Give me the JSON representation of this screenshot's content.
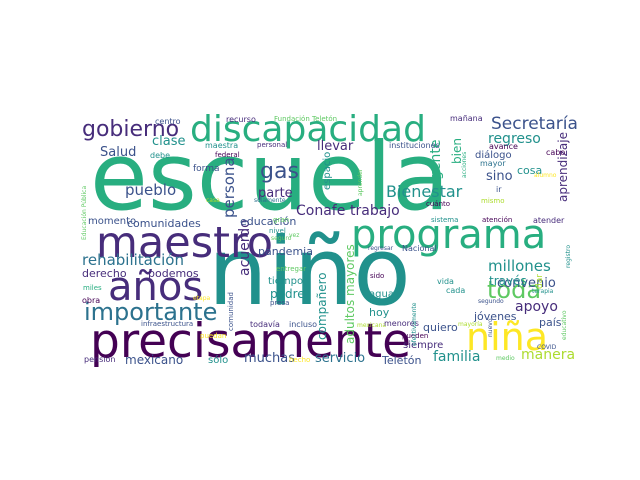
{
  "colors": {
    "dark_purple": "#440154",
    "purple": "#472d7b",
    "indigo": "#3b528b",
    "blue": "#2c728e",
    "teal": "#21918c",
    "green_teal": "#28ae80",
    "green": "#5ec962",
    "light_green": "#addc30",
    "yellow": "#fde725"
  },
  "words": [
    {
      "text": "escuela",
      "color": "green_teal"
    },
    {
      "text": "niño",
      "color": "teal"
    },
    {
      "text": "precisamente",
      "color": "dark_purple"
    },
    {
      "text": "maestro",
      "color": "purple"
    },
    {
      "text": "programa",
      "color": "green_teal"
    },
    {
      "text": "discapacidad",
      "color": "green_teal"
    },
    {
      "text": "años",
      "color": "purple"
    },
    {
      "text": "gobierno",
      "color": "purple"
    },
    {
      "text": "importante",
      "color": "blue"
    },
    {
      "text": "niña",
      "color": "yellow"
    },
    {
      "text": "gas",
      "color": "indigo"
    },
    {
      "text": "Secretaría",
      "color": "indigo"
    },
    {
      "text": "toda",
      "color": "green"
    },
    {
      "text": "Bienestar",
      "color": "teal"
    },
    {
      "text": "rehabilitación",
      "color": "blue"
    },
    {
      "text": "millones",
      "color": "teal"
    },
    {
      "text": "pueblo",
      "color": "indigo"
    },
    {
      "text": "persona",
      "color": "indigo"
    },
    {
      "text": "Conafe",
      "color": "purple"
    },
    {
      "text": "trabajo",
      "color": "purple"
    },
    {
      "text": "regreso",
      "color": "teal"
    },
    {
      "text": "clase",
      "color": "teal"
    },
    {
      "text": "Salud",
      "color": "indigo"
    },
    {
      "text": "llevar",
      "color": "purple"
    },
    {
      "text": "parte",
      "color": "purple"
    },
    {
      "text": "acuerdo",
      "color": "purple"
    },
    {
      "text": "sino",
      "color": "indigo"
    },
    {
      "text": "convenio",
      "color": "indigo"
    },
    {
      "text": "apoyo",
      "color": "purple"
    },
    {
      "text": "familia",
      "color": "teal"
    },
    {
      "text": "manera",
      "color": "light_green"
    },
    {
      "text": "servicio",
      "color": "blue"
    },
    {
      "text": "muchas",
      "color": "indigo"
    },
    {
      "text": "mexicano",
      "color": "indigo"
    },
    {
      "text": "derecho",
      "color": "purple"
    },
    {
      "text": "podemos",
      "color": "purple"
    },
    {
      "text": "comunidades",
      "color": "indigo"
    },
    {
      "text": "educación",
      "color": "indigo"
    },
    {
      "text": "momento",
      "color": "indigo"
    },
    {
      "text": "pandemia",
      "color": "indigo"
    },
    {
      "text": "compañero",
      "color": "teal"
    },
    {
      "text": "adultos mayores",
      "color": "green"
    },
    {
      "text": "gente",
      "color": "green_teal"
    },
    {
      "text": "bien",
      "color": "green_teal"
    },
    {
      "text": "cosa",
      "color": "teal"
    },
    {
      "text": "través",
      "color": "teal"
    },
    {
      "text": "aprendizaje",
      "color": "purple"
    },
    {
      "text": "padre",
      "color": "teal"
    },
    {
      "text": "tiempo",
      "color": "teal"
    },
    {
      "text": "sólo",
      "color": "teal"
    },
    {
      "text": "Teletón",
      "color": "indigo"
    },
    {
      "text": "quiero",
      "color": "indigo"
    },
    {
      "text": "país",
      "color": "indigo"
    },
    {
      "text": "jóvenes",
      "color": "indigo"
    },
    {
      "text": "siempre",
      "color": "purple"
    },
    {
      "text": "hoy",
      "color": "teal"
    },
    {
      "text": "agua",
      "color": "teal"
    },
    {
      "text": "diálogo",
      "color": "indigo"
    },
    {
      "text": "espacio",
      "color": "teal"
    },
    {
      "text": "forma",
      "color": "indigo"
    },
    {
      "text": "centro",
      "color": "indigo"
    },
    {
      "text": "recurso",
      "color": "purple"
    },
    {
      "text": "Fundación Teletón",
      "color": "green"
    },
    {
      "text": "mañana",
      "color": "purple"
    },
    {
      "text": "debe",
      "color": "teal"
    },
    {
      "text": "maestra",
      "color": "teal"
    },
    {
      "text": "personal",
      "color": "purple"
    },
    {
      "text": "federal",
      "color": "dark_purple"
    },
    {
      "text": "instituciones",
      "color": "indigo"
    },
    {
      "text": "mayor",
      "color": "blue"
    },
    {
      "text": "avance",
      "color": "dark_purple"
    },
    {
      "text": "cabo",
      "color": "dark_purple"
    },
    {
      "text": "ir",
      "color": "indigo"
    },
    {
      "text": "cuánto",
      "color": "dark_purple"
    },
    {
      "text": "mismo",
      "color": "light_green"
    },
    {
      "text": "atender",
      "color": "purple"
    },
    {
      "text": "atención",
      "color": "dark_purple"
    },
    {
      "text": "sistema",
      "color": "teal"
    },
    {
      "text": "solamente",
      "color": "blue"
    },
    {
      "text": "nivel",
      "color": "teal"
    },
    {
      "text": "seguro",
      "color": "green"
    },
    {
      "text": "vez",
      "color": "green"
    },
    {
      "text": "gran",
      "color": "green"
    },
    {
      "text": "entregar",
      "color": "green"
    },
    {
      "text": "regresar",
      "color": "indigo"
    },
    {
      "text": "Nacional",
      "color": "indigo"
    },
    {
      "text": "sido",
      "color": "dark_purple"
    },
    {
      "text": "comunidad",
      "color": "indigo"
    },
    {
      "text": "presa",
      "color": "indigo"
    },
    {
      "text": "etapa",
      "color": "yellow"
    },
    {
      "text": "miles",
      "color": "green_teal"
    },
    {
      "text": "obra",
      "color": "dark_purple"
    },
    {
      "text": "infraestructura",
      "color": "indigo"
    },
    {
      "text": "todavía",
      "color": "purple"
    },
    {
      "text": "incluso",
      "color": "indigo"
    },
    {
      "text": "mexicana",
      "color": "light_green"
    },
    {
      "text": "menores",
      "color": "purple"
    },
    {
      "text": "pueden",
      "color": "dark_purple"
    },
    {
      "text": "vida",
      "color": "teal"
    },
    {
      "text": "cada",
      "color": "teal"
    },
    {
      "text": "segundo",
      "color": "indigo"
    },
    {
      "text": "mayoría",
      "color": "light_green"
    },
    {
      "text": "nuevo",
      "color": "indigo"
    },
    {
      "text": "medio",
      "color": "green"
    },
    {
      "text": "terapia",
      "color": "teal"
    },
    {
      "text": "COVID",
      "color": "indigo"
    },
    {
      "text": "dar",
      "color": "light_green"
    },
    {
      "text": "registro",
      "color": "teal"
    },
    {
      "text": "educativo",
      "color": "green"
    },
    {
      "text": "alumno",
      "color": "yellow"
    },
    {
      "text": "pensión",
      "color": "purple"
    },
    {
      "text": "hecho",
      "color": "yellow"
    },
    {
      "text": "puedan",
      "color": "yellow"
    },
    {
      "text": "aprender",
      "color": "green"
    },
    {
      "text": "Educación Pública",
      "color": "green"
    },
    {
      "text": "casa",
      "color": "light_green"
    },
    {
      "text": "efectivamente",
      "color": "teal"
    },
    {
      "text": "acciones",
      "color": "green_teal"
    }
  ]
}
